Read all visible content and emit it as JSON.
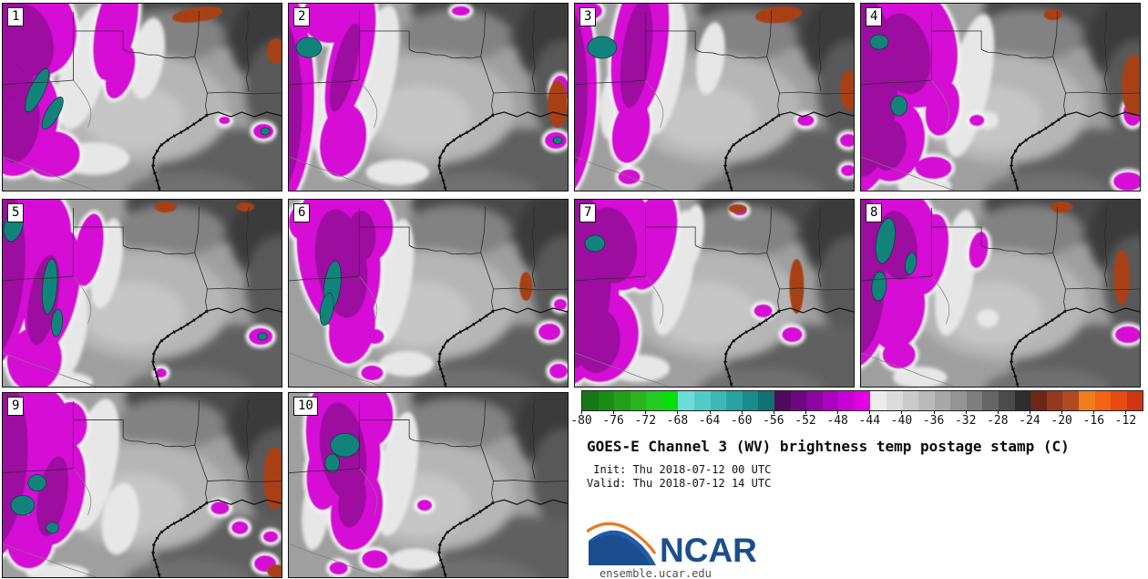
{
  "info": {
    "title": "GOES-E Channel 3 (WV) brightness temp postage stamp (C)",
    "init_line": " Init: Thu 2018-07-12 00 UTC",
    "valid_line": "Valid: Thu 2018-07-12 14 UTC",
    "url": "ensemble.ucar.edu",
    "logo_text": "NCAR",
    "logo_blue": "#1b4e8f",
    "logo_orange": "#e87a22"
  },
  "colorbar": {
    "range_min": -80,
    "range_max": -10,
    "tick_step": 4,
    "ticks": [
      "-80",
      "-76",
      "-72",
      "-68",
      "-64",
      "-60",
      "-56",
      "-52",
      "-48",
      "-44",
      "-40",
      "-36",
      "-32",
      "-28",
      "-24",
      "-20",
      "-16",
      "-12"
    ],
    "colors": [
      "#157a15",
      "#1b8c17",
      "#23a01a",
      "#2bb41d",
      "#21cb21",
      "#06df06",
      "#6cdcd8",
      "#52cbc8",
      "#3bb7b4",
      "#28a3a0",
      "#188c8a",
      "#0d7472",
      "#4f0a5e",
      "#6e0880",
      "#8d05a2",
      "#ab03c0",
      "#c801d5",
      "#e300e3",
      "#ececec",
      "#dcdcdc",
      "#cbcbcb",
      "#bababa",
      "#a8a8a8",
      "#949494",
      "#7e7e7e",
      "#666666",
      "#4b4b4b",
      "#2d2d2d",
      "#6b2817",
      "#95391c",
      "#b1491f",
      "#ee7d1b",
      "#f06414",
      "#e84b0f",
      "#cf3710"
    ]
  },
  "theme": {
    "base": "#9f9f9f",
    "magenta": "#d50bd5",
    "magenta_core": "#9c07a0",
    "halo": "#f0f0f0",
    "teal": "#12837b",
    "teal_edge": "#07433f",
    "orange": "#a84018",
    "light": "#e7e7e7",
    "line": "#2b2b2b",
    "coast": "#111111"
  },
  "panels": [
    {
      "label": "1",
      "magenta": [
        [
          -15,
          60,
          70,
          120,
          10
        ],
        [
          35,
          25,
          45,
          55,
          -20
        ],
        [
          20,
          130,
          40,
          60,
          15
        ],
        [
          55,
          165,
          30,
          25,
          0
        ],
        [
          125,
          25,
          22,
          60,
          12
        ],
        [
          130,
          75,
          14,
          30,
          18
        ],
        [
          288,
          140,
          11,
          8,
          0
        ],
        [
          245,
          128,
          6,
          4,
          0
        ]
      ],
      "core": [
        [
          -10,
          70,
          45,
          90,
          10
        ],
        [
          30,
          40,
          25,
          40,
          -15
        ],
        [
          18,
          135,
          22,
          40,
          12
        ]
      ],
      "teal": [
        [
          38,
          95,
          8,
          26,
          25
        ],
        [
          55,
          120,
          7,
          20,
          30
        ],
        [
          290,
          140,
          5,
          4,
          0
        ]
      ],
      "orange": [
        [
          215,
          12,
          28,
          8,
          -8
        ],
        [
          302,
          52,
          10,
          14,
          0
        ]
      ],
      "light": [
        [
          90,
          70,
          25,
          70,
          15
        ],
        [
          160,
          60,
          18,
          45,
          10
        ],
        [
          100,
          170,
          40,
          18,
          0
        ]
      ]
    },
    {
      "label": "2",
      "magenta": [
        [
          -20,
          100,
          48,
          130,
          0
        ],
        [
          45,
          15,
          30,
          28,
          0
        ],
        [
          68,
          60,
          22,
          75,
          14
        ],
        [
          60,
          150,
          25,
          40,
          10
        ],
        [
          300,
          95,
          10,
          16,
          0
        ],
        [
          295,
          150,
          12,
          9,
          0
        ],
        [
          190,
          8,
          10,
          5,
          0
        ]
      ],
      "core": [
        [
          -15,
          110,
          30,
          100,
          0
        ],
        [
          62,
          70,
          12,
          50,
          14
        ]
      ],
      "teal": [
        [
          22,
          48,
          14,
          11,
          0
        ],
        [
          297,
          150,
          5,
          4,
          0
        ]
      ],
      "orange": [
        [
          297,
          110,
          11,
          26,
          0
        ]
      ],
      "light": [
        [
          95,
          80,
          22,
          80,
          12
        ],
        [
          40,
          120,
          15,
          45,
          8
        ],
        [
          120,
          185,
          35,
          14,
          0
        ]
      ]
    },
    {
      "label": "3",
      "magenta": [
        [
          -18,
          90,
          42,
          125,
          0
        ],
        [
          72,
          45,
          30,
          85,
          8
        ],
        [
          62,
          140,
          20,
          35,
          12
        ],
        [
          60,
          190,
          12,
          8,
          0
        ],
        [
          255,
          128,
          9,
          6,
          0
        ],
        [
          302,
          150,
          9,
          7,
          0
        ],
        [
          302,
          183,
          8,
          6,
          0
        ],
        [
          12,
          8,
          18,
          10,
          0
        ]
      ],
      "core": [
        [
          -12,
          95,
          26,
          95,
          0
        ],
        [
          68,
          55,
          16,
          60,
          8
        ]
      ],
      "teal": [
        [
          30,
          48,
          16,
          12,
          0
        ]
      ],
      "orange": [
        [
          225,
          12,
          26,
          9,
          -6
        ],
        [
          303,
          95,
          10,
          22,
          0
        ]
      ],
      "light": [
        [
          100,
          70,
          20,
          75,
          10
        ],
        [
          42,
          110,
          14,
          40,
          6
        ],
        [
          150,
          60,
          15,
          40,
          8
        ]
      ]
    },
    {
      "label": "4",
      "magenta": [
        [
          -10,
          80,
          60,
          130,
          0
        ],
        [
          55,
          45,
          50,
          70,
          -15
        ],
        [
          35,
          150,
          35,
          45,
          10
        ],
        [
          90,
          115,
          18,
          30,
          12
        ],
        [
          80,
          180,
          20,
          12,
          0
        ],
        [
          300,
          120,
          10,
          14,
          0
        ],
        [
          295,
          195,
          16,
          10,
          0
        ],
        [
          128,
          128,
          8,
          6,
          0
        ]
      ],
      "core": [
        [
          0,
          90,
          40,
          100,
          0
        ],
        [
          48,
          55,
          28,
          45,
          -12
        ],
        [
          30,
          155,
          20,
          28,
          8
        ]
      ],
      "teal": [
        [
          20,
          42,
          10,
          8,
          0
        ],
        [
          42,
          112,
          9,
          11,
          0
        ]
      ],
      "orange": [
        [
          302,
          90,
          14,
          34,
          0
        ],
        [
          212,
          12,
          10,
          6,
          0
        ]
      ],
      "light": [
        [
          120,
          90,
          22,
          80,
          12
        ],
        [
          70,
          200,
          30,
          12,
          0
        ],
        [
          140,
          128,
          12,
          10,
          0
        ]
      ]
    },
    {
      "label": "5",
      "magenta": [
        [
          -15,
          70,
          50,
          120,
          5
        ],
        [
          40,
          30,
          35,
          45,
          -10
        ],
        [
          55,
          100,
          28,
          70,
          12
        ],
        [
          35,
          175,
          30,
          35,
          8
        ],
        [
          95,
          55,
          15,
          40,
          10
        ],
        [
          285,
          150,
          13,
          9,
          0
        ],
        [
          175,
          190,
          6,
          5,
          0
        ]
      ],
      "core": [
        [
          -8,
          80,
          32,
          95,
          5
        ],
        [
          45,
          110,
          16,
          50,
          10
        ]
      ],
      "teal": [
        [
          12,
          28,
          10,
          18,
          15
        ],
        [
          52,
          95,
          8,
          30,
          5
        ],
        [
          60,
          135,
          6,
          15,
          5
        ],
        [
          287,
          150,
          5,
          4,
          0
        ]
      ],
      "orange": [
        [
          180,
          8,
          12,
          6,
          0
        ],
        [
          268,
          8,
          10,
          5,
          0
        ]
      ],
      "light": [
        [
          75,
          140,
          18,
          55,
          8
        ],
        [
          115,
          70,
          16,
          50,
          10
        ],
        [
          60,
          200,
          40,
          12,
          0
        ]
      ]
    },
    {
      "label": "6",
      "magenta": [
        [
          55,
          60,
          45,
          85,
          -8
        ],
        [
          85,
          30,
          30,
          40,
          0
        ],
        [
          70,
          140,
          25,
          40,
          10
        ],
        [
          12,
          25,
          12,
          18,
          0
        ],
        [
          95,
          150,
          10,
          8,
          0
        ],
        [
          92,
          190,
          12,
          8,
          0
        ],
        [
          288,
          145,
          12,
          9,
          0
        ],
        [
          298,
          188,
          10,
          8,
          0
        ],
        [
          300,
          115,
          7,
          6,
          0
        ]
      ],
      "core": [
        [
          58,
          70,
          28,
          60,
          -8
        ],
        [
          80,
          40,
          16,
          28,
          0
        ]
      ],
      "teal": [
        [
          48,
          95,
          9,
          28,
          8
        ],
        [
          42,
          120,
          7,
          18,
          10
        ]
      ],
      "orange": [
        [
          262,
          95,
          7,
          16,
          0
        ]
      ],
      "light": [
        [
          115,
          90,
          20,
          70,
          10
        ],
        [
          40,
          60,
          12,
          40,
          5
        ],
        [
          130,
          180,
          30,
          14,
          0
        ]
      ]
    },
    {
      "label": "7",
      "magenta": [
        [
          -15,
          75,
          65,
          130,
          0
        ],
        [
          45,
          40,
          45,
          60,
          -12
        ],
        [
          30,
          150,
          40,
          50,
          8
        ],
        [
          85,
          45,
          25,
          55,
          15
        ],
        [
          208,
          122,
          10,
          7,
          0
        ],
        [
          240,
          148,
          11,
          8,
          0
        ],
        [
          182,
          12,
          8,
          5,
          0
        ]
      ],
      "core": [
        [
          -5,
          85,
          45,
          100,
          0
        ],
        [
          40,
          50,
          28,
          42,
          -10
        ],
        [
          25,
          155,
          25,
          35,
          6
        ]
      ],
      "teal": [
        [
          22,
          48,
          11,
          9,
          0
        ]
      ],
      "orange": [
        [
          245,
          95,
          8,
          30,
          0
        ],
        [
          180,
          10,
          10,
          5,
          0
        ]
      ],
      "light": [
        [
          110,
          80,
          20,
          70,
          12
        ],
        [
          70,
          185,
          35,
          15,
          0
        ],
        [
          130,
          40,
          12,
          35,
          8
        ]
      ]
    },
    {
      "label": "8",
      "magenta": [
        [
          -12,
          70,
          50,
          115,
          0
        ],
        [
          45,
          40,
          40,
          55,
          -10
        ],
        [
          40,
          120,
          30,
          45,
          10
        ],
        [
          75,
          60,
          20,
          45,
          12
        ],
        [
          42,
          170,
          18,
          15,
          0
        ],
        [
          295,
          148,
          14,
          9,
          0
        ],
        [
          130,
          55,
          10,
          20,
          10
        ]
      ],
      "core": [
        [
          -5,
          80,
          32,
          90,
          0
        ],
        [
          40,
          50,
          22,
          38,
          -8
        ]
      ],
      "teal": [
        [
          27,
          45,
          10,
          25,
          10
        ],
        [
          20,
          95,
          8,
          16,
          5
        ],
        [
          55,
          70,
          6,
          12,
          10
        ]
      ],
      "orange": [
        [
          288,
          85,
          9,
          30,
          0
        ],
        [
          222,
          8,
          12,
          6,
          0
        ]
      ],
      "light": [
        [
          105,
          80,
          20,
          70,
          10
        ],
        [
          65,
          195,
          30,
          12,
          0
        ],
        [
          140,
          130,
          12,
          10,
          0
        ]
      ]
    },
    {
      "label": "9",
      "magenta": [
        [
          -15,
          70,
          55,
          120,
          5
        ],
        [
          40,
          35,
          35,
          45,
          -12
        ],
        [
          60,
          110,
          30,
          60,
          10
        ],
        [
          30,
          165,
          25,
          30,
          8
        ],
        [
          75,
          35,
          18,
          25,
          0
        ],
        [
          240,
          128,
          10,
          7,
          0
        ],
        [
          262,
          150,
          9,
          7,
          0
        ],
        [
          296,
          160,
          8,
          6,
          0
        ],
        [
          290,
          190,
          12,
          9,
          0
        ]
      ],
      "core": [
        [
          -8,
          80,
          35,
          95,
          5
        ],
        [
          55,
          115,
          16,
          45,
          10
        ]
      ],
      "teal": [
        [
          22,
          125,
          13,
          11,
          0
        ],
        [
          38,
          100,
          10,
          9,
          0
        ],
        [
          55,
          150,
          7,
          6,
          0
        ]
      ],
      "orange": [
        [
          300,
          95,
          12,
          35,
          0
        ],
        [
          302,
          198,
          10,
          7,
          0
        ]
      ],
      "light": [
        [
          100,
          80,
          25,
          75,
          12
        ],
        [
          130,
          140,
          20,
          40,
          8
        ],
        [
          60,
          200,
          35,
          10,
          0
        ]
      ]
    },
    {
      "label": "10",
      "magenta": [
        [
          60,
          55,
          40,
          75,
          -8
        ],
        [
          90,
          25,
          25,
          35,
          0
        ],
        [
          75,
          130,
          28,
          45,
          10
        ],
        [
          40,
          90,
          20,
          40,
          5
        ],
        [
          95,
          185,
          14,
          10,
          0
        ],
        [
          150,
          125,
          8,
          6,
          0
        ],
        [
          55,
          195,
          10,
          7,
          0
        ]
      ],
      "core": [
        [
          60,
          65,
          25,
          55,
          -8
        ],
        [
          70,
          120,
          15,
          30,
          8
        ]
      ],
      "teal": [
        [
          62,
          58,
          16,
          13,
          0
        ],
        [
          48,
          78,
          8,
          10,
          0
        ]
      ],
      "orange": [],
      "light": [
        [
          120,
          90,
          20,
          70,
          10
        ],
        [
          30,
          130,
          15,
          45,
          6
        ],
        [
          140,
          185,
          28,
          12,
          0
        ]
      ]
    }
  ]
}
